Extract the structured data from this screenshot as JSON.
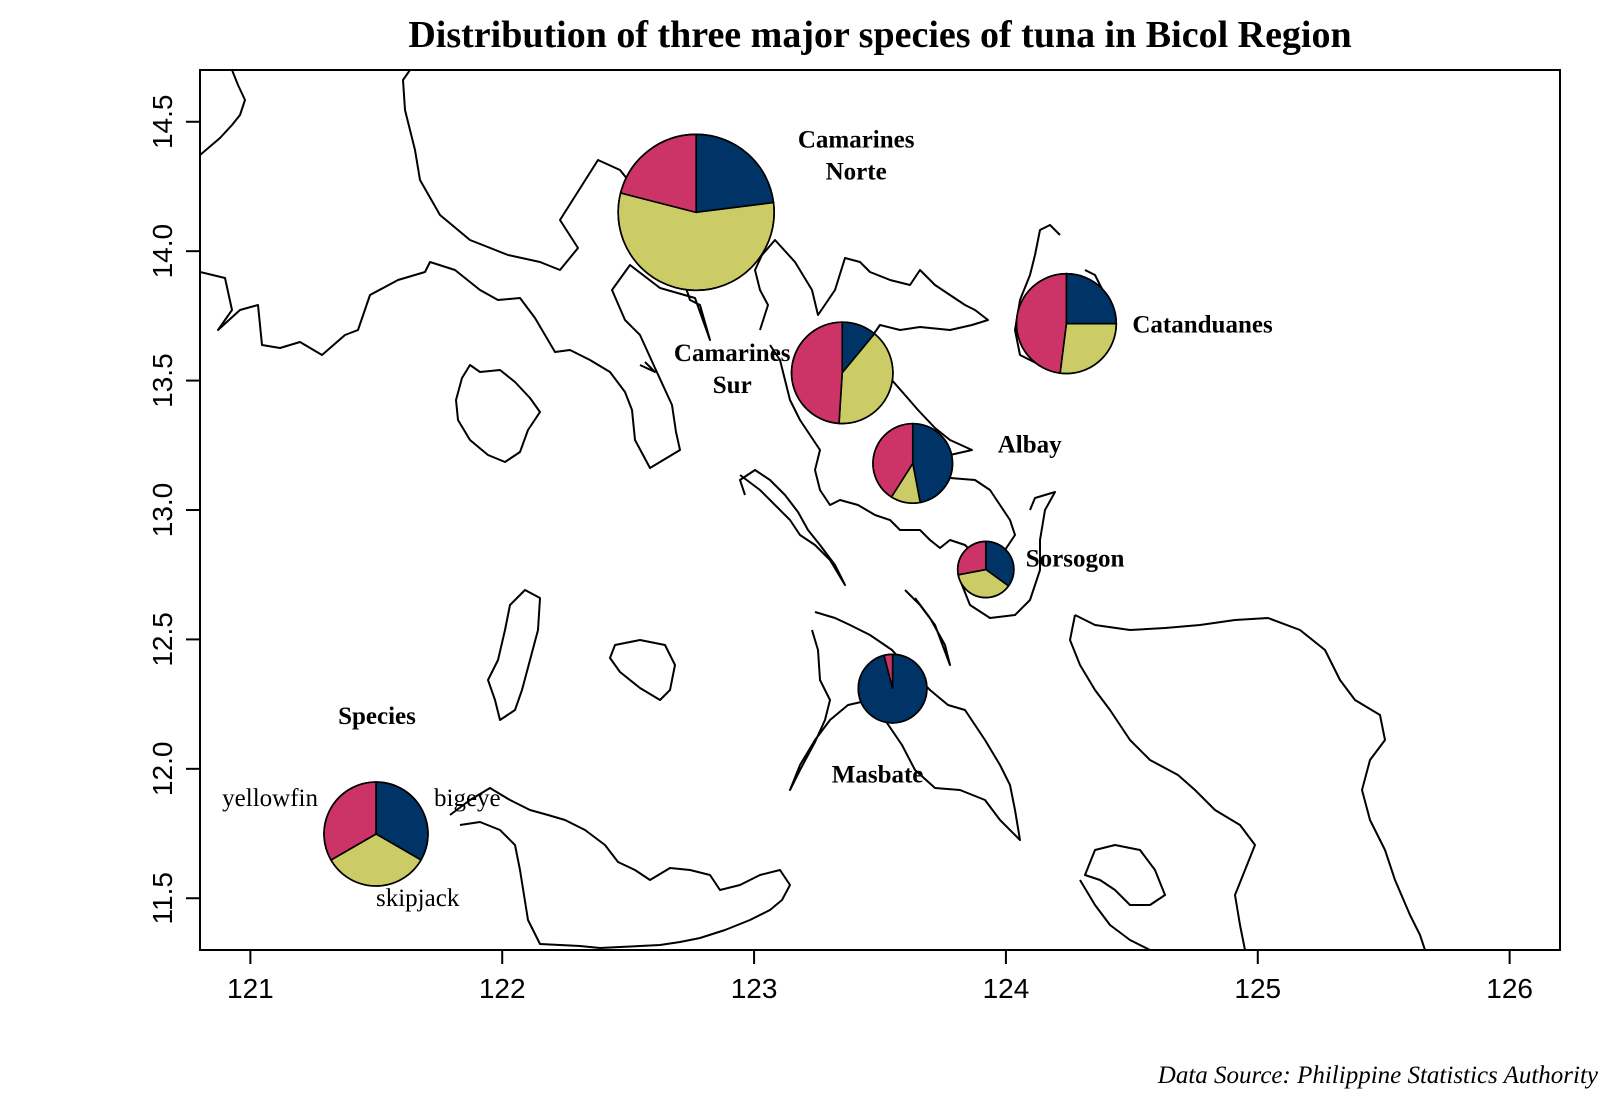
{
  "title": "Distribution of three major species of tuna in Bicol Region",
  "source": "Data Source: Philippine Statistics Authority",
  "x_axis": {
    "ticks": [
      "121",
      "122",
      "123",
      "124",
      "125",
      "126"
    ],
    "range": [
      120.8,
      126.2
    ]
  },
  "y_axis": {
    "ticks": [
      "11.5",
      "12.0",
      "12.5",
      "13.0",
      "13.5",
      "14.0",
      "14.5"
    ],
    "range": [
      11.3,
      14.7
    ]
  },
  "colors": {
    "bigeye": "#003366",
    "skipjack": "#CCCC66",
    "yellowfin": "#CC3366"
  },
  "legend": {
    "title": "Species",
    "labels": {
      "yellowfin": "yellowfin",
      "bigeye": "bigeye",
      "skipjack": "skipjack"
    }
  },
  "map_data": {
    "type": "pie-map",
    "slice_order": [
      "bigeye",
      "skipjack",
      "yellowfin"
    ],
    "provinces": [
      {
        "name_lines": [
          "Camarines",
          "Norte"
        ],
        "lon": 122.77,
        "lat": 14.15,
        "relative_size": 1.0,
        "shares": {
          "bigeye": 0.23,
          "skipjack": 0.56,
          "yellowfin": 0.21
        }
      },
      {
        "name_lines": [
          "Camarines",
          "Sur"
        ],
        "lon": 123.35,
        "lat": 13.53,
        "relative_size": 0.65,
        "shares": {
          "bigeye": 0.11,
          "skipjack": 0.4,
          "yellowfin": 0.49
        }
      },
      {
        "name_lines": [
          "Catanduanes"
        ],
        "lon": 124.24,
        "lat": 13.72,
        "relative_size": 0.64,
        "shares": {
          "bigeye": 0.25,
          "skipjack": 0.27,
          "yellowfin": 0.48
        }
      },
      {
        "name_lines": [
          "Albay"
        ],
        "lon": 123.63,
        "lat": 13.18,
        "relative_size": 0.51,
        "shares": {
          "bigeye": 0.47,
          "skipjack": 0.12,
          "yellowfin": 0.41
        }
      },
      {
        "name_lines": [
          "Sorsogon"
        ],
        "lon": 123.92,
        "lat": 12.77,
        "relative_size": 0.36,
        "shares": {
          "bigeye": 0.35,
          "skipjack": 0.37,
          "yellowfin": 0.28
        }
      },
      {
        "name_lines": [
          "Masbate"
        ],
        "lon": 123.55,
        "lat": 12.31,
        "relative_size": 0.44,
        "shares": {
          "bigeye": 0.96,
          "skipjack": 0.0,
          "yellowfin": 0.04
        }
      }
    ]
  }
}
